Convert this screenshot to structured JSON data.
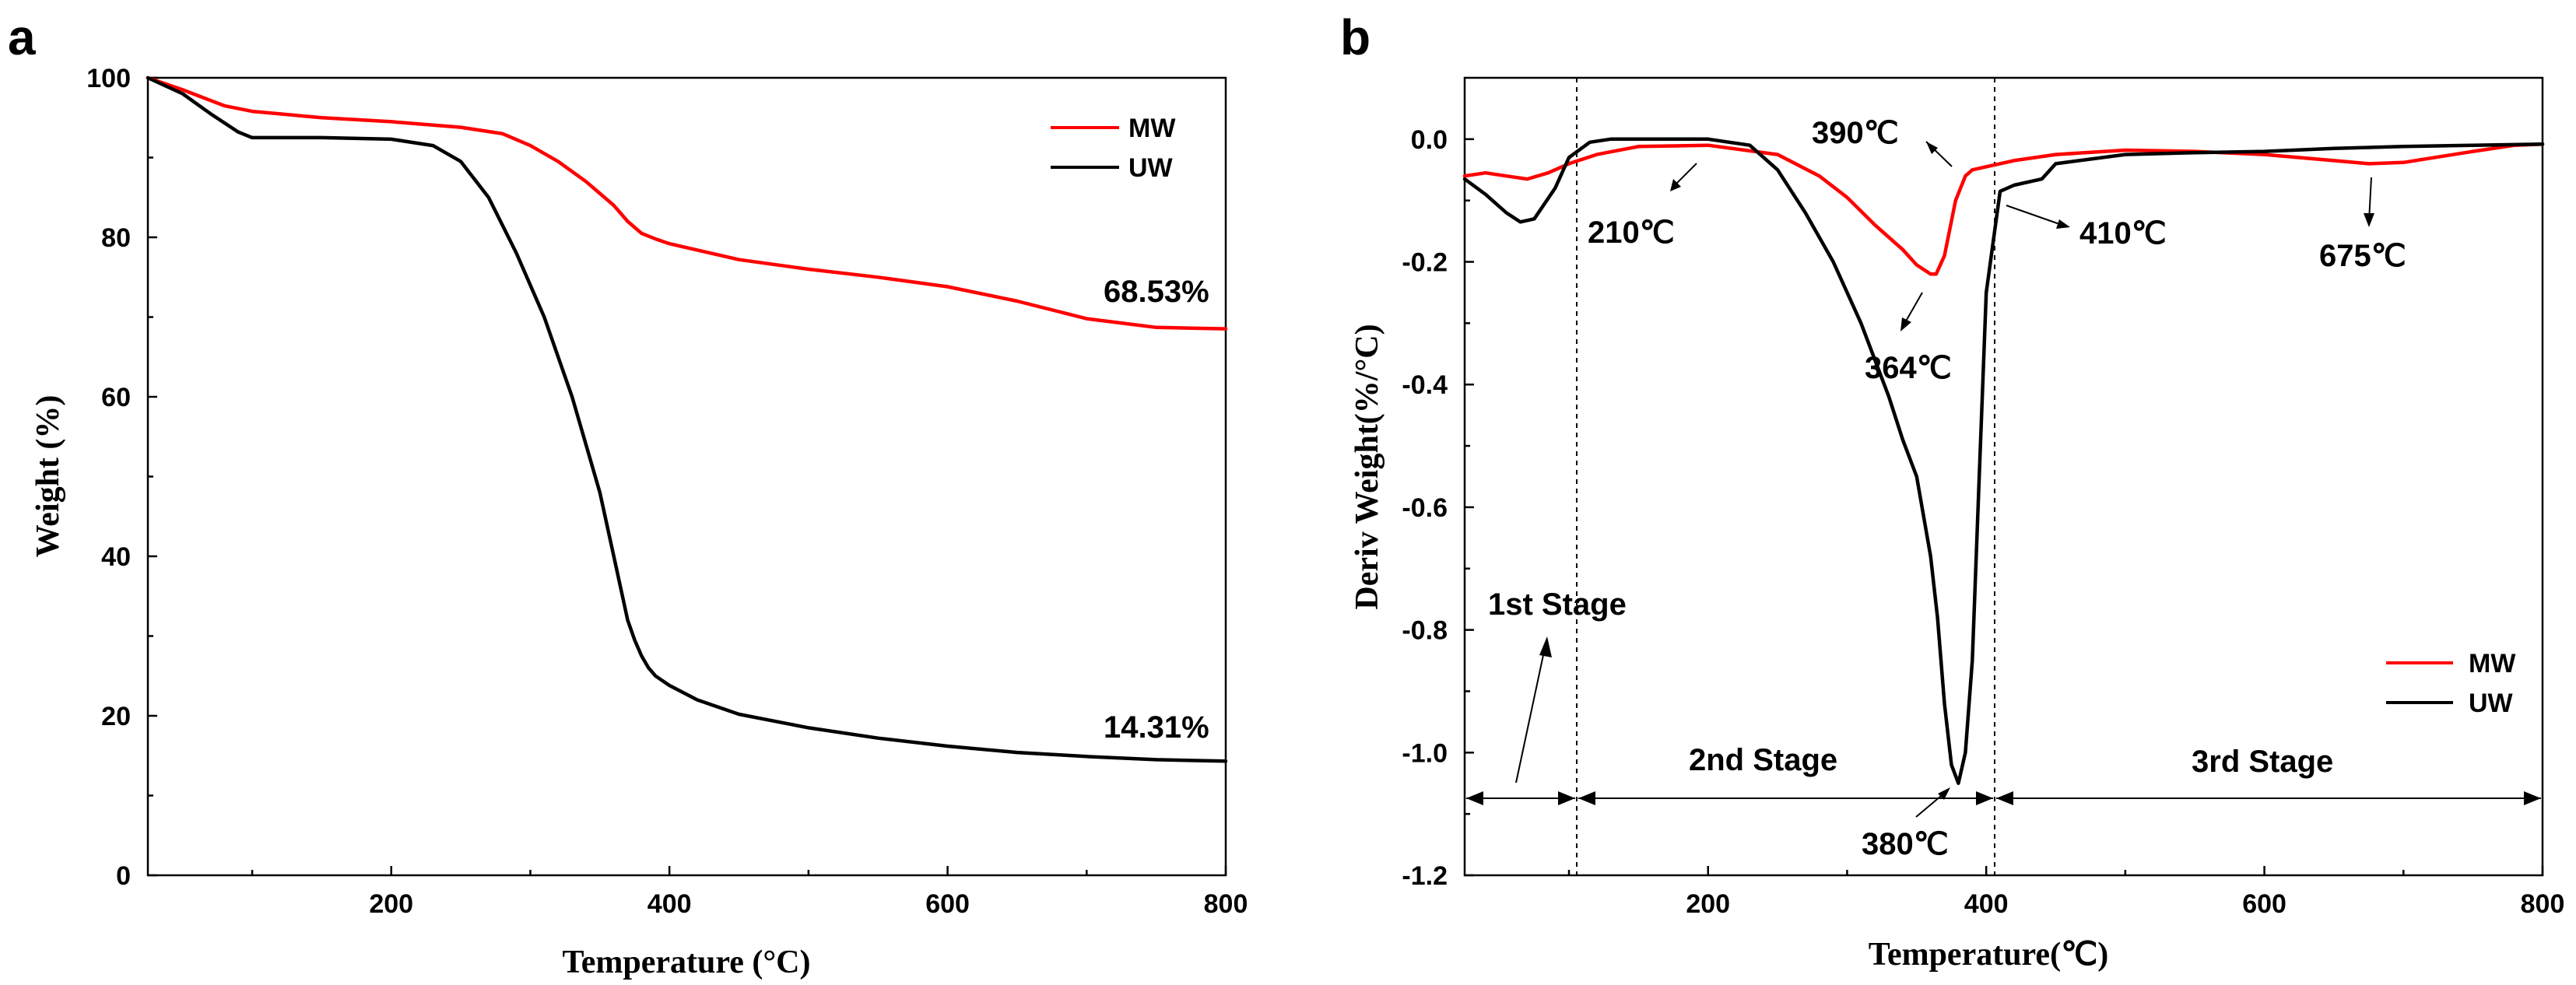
{
  "colors": {
    "mw": "#ff0000",
    "uw": "#000000"
  },
  "chart_data": [
    {
      "panel": "a",
      "type": "line",
      "xlabel": "Temperature (°C)",
      "ylabel": "Weight (%)",
      "xlim": [
        25,
        800
      ],
      "ylim": [
        0,
        100
      ],
      "xticks": [
        200,
        400,
        600,
        800
      ],
      "yticks": [
        0,
        20,
        40,
        60,
        80,
        100
      ],
      "legend_position": "top-right",
      "series": [
        {
          "name": "MW",
          "color": "#ff0000",
          "x": [
            25,
            50,
            80,
            100,
            150,
            200,
            250,
            280,
            300,
            320,
            340,
            360,
            370,
            380,
            390,
            400,
            450,
            500,
            550,
            600,
            650,
            700,
            750,
            800
          ],
          "y": [
            100,
            98.5,
            96.5,
            95.8,
            95,
            94.5,
            93.8,
            93,
            91.5,
            89.5,
            87,
            84,
            82,
            80.5,
            79.8,
            79.2,
            77.2,
            76,
            75,
            73.8,
            72,
            69.8,
            68.7,
            68.53
          ]
        },
        {
          "name": "UW",
          "color": "#000000",
          "x": [
            25,
            50,
            70,
            90,
            100,
            150,
            200,
            230,
            250,
            270,
            290,
            310,
            330,
            350,
            360,
            370,
            375,
            380,
            385,
            390,
            400,
            420,
            450,
            500,
            550,
            600,
            650,
            700,
            750,
            800
          ],
          "y": [
            100,
            98,
            95.5,
            93.2,
            92.5,
            92.5,
            92.3,
            91.5,
            89.5,
            85,
            78,
            70,
            60,
            48,
            40,
            32,
            29.5,
            27.5,
            26,
            25,
            23.8,
            22,
            20.2,
            18.5,
            17.2,
            16.2,
            15.4,
            14.9,
            14.5,
            14.31
          ]
        }
      ],
      "annotations": [
        {
          "text": "68.53%",
          "x": 800,
          "y": 68.53
        },
        {
          "text": "14.31%",
          "x": 800,
          "y": 14.31
        }
      ]
    },
    {
      "panel": "b",
      "type": "line",
      "xlabel": "Temperature(℃)",
      "ylabel": "Deriv Weight(%/°C)",
      "xlim": [
        25,
        800
      ],
      "ylim": [
        -1.2,
        0.1
      ],
      "xticks": [
        200,
        400,
        600,
        800
      ],
      "yticks": [
        0.0,
        -0.2,
        -0.4,
        -0.6,
        -0.8,
        -1.0,
        -1.2
      ],
      "ytick_labels": [
        "0.0",
        "-0.2",
        "-0.4",
        "-0.6",
        "-0.8",
        "-1.0",
        "-1.2"
      ],
      "legend_position": "bottom-right",
      "series": [
        {
          "name": "MW",
          "color": "#ff0000",
          "x": [
            25,
            40,
            55,
            70,
            85,
            100,
            120,
            150,
            200,
            250,
            280,
            300,
            320,
            340,
            350,
            360,
            364,
            370,
            378,
            385,
            390,
            400,
            420,
            450,
            500,
            550,
            600,
            650,
            675,
            700,
            750,
            780,
            800
          ],
          "y": [
            -0.06,
            -0.055,
            -0.06,
            -0.065,
            -0.055,
            -0.04,
            -0.025,
            -0.012,
            -0.01,
            -0.025,
            -0.06,
            -0.095,
            -0.14,
            -0.18,
            -0.205,
            -0.22,
            -0.22,
            -0.19,
            -0.1,
            -0.06,
            -0.05,
            -0.045,
            -0.035,
            -0.025,
            -0.018,
            -0.02,
            -0.025,
            -0.035,
            -0.04,
            -0.038,
            -0.02,
            -0.01,
            -0.008
          ]
        },
        {
          "name": "UW",
          "color": "#000000",
          "x": [
            25,
            40,
            55,
            65,
            75,
            90,
            100,
            115,
            130,
            150,
            200,
            230,
            250,
            270,
            290,
            310,
            330,
            340,
            350,
            360,
            365,
            370,
            375,
            380,
            385,
            390,
            395,
            400,
            410,
            420,
            440,
            450,
            500,
            550,
            600,
            650,
            700,
            750,
            800
          ],
          "y": [
            -0.065,
            -0.09,
            -0.12,
            -0.135,
            -0.13,
            -0.08,
            -0.03,
            -0.005,
            0.0,
            0.0,
            0.0,
            -0.01,
            -0.05,
            -0.12,
            -0.2,
            -0.3,
            -0.42,
            -0.49,
            -0.55,
            -0.68,
            -0.78,
            -0.92,
            -1.02,
            -1.05,
            -1.0,
            -0.85,
            -0.55,
            -0.25,
            -0.085,
            -0.075,
            -0.065,
            -0.04,
            -0.025,
            -0.022,
            -0.02,
            -0.015,
            -0.012,
            -0.01,
            -0.008
          ]
        }
      ],
      "vlines": [
        115,
        410
      ],
      "annotations": [
        {
          "text": "210℃",
          "x": 210
        },
        {
          "text": "390℃",
          "x": 390
        },
        {
          "text": "364℃",
          "x": 364
        },
        {
          "text": "410℃",
          "x": 410
        },
        {
          "text": "675℃",
          "x": 675
        },
        {
          "text": "380℃",
          "x": 380
        }
      ],
      "stages": [
        {
          "label": "1st Stage",
          "from": 25,
          "to": 115
        },
        {
          "label": "2nd Stage",
          "from": 115,
          "to": 410
        },
        {
          "label": "3rd Stage",
          "from": 410,
          "to": 800
        }
      ]
    }
  ]
}
